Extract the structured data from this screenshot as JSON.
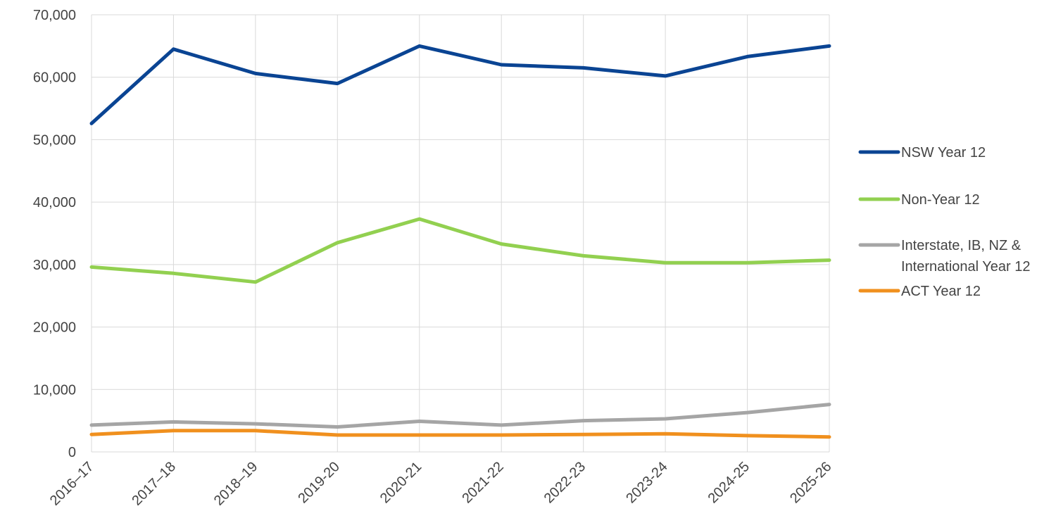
{
  "chart_data": {
    "type": "line",
    "title": "",
    "xlabel": "",
    "ylabel": "",
    "categories": [
      "2016–17",
      "2017–18",
      "2018–19",
      "2019-20",
      "2020-21",
      "2021-22",
      "2022-23",
      "2023-24",
      "2024-25",
      "2025-26"
    ],
    "ylim": [
      0,
      70000
    ],
    "yticks": [
      0,
      10000,
      20000,
      30000,
      40000,
      50000,
      60000,
      70000
    ],
    "ytick_labels": [
      "0",
      "10,000",
      "20,000",
      "30,000",
      "40,000",
      "50,000",
      "60,000",
      "70,000"
    ],
    "grid": true,
    "legend_position": "right",
    "series": [
      {
        "name": "NSW Year 12",
        "color": "#0a4493",
        "values": [
          52600,
          64500,
          60600,
          59000,
          65000,
          62000,
          61500,
          60200,
          63300,
          65000
        ]
      },
      {
        "name": "Non-Year 12",
        "color": "#92d050",
        "values": [
          29600,
          28600,
          27200,
          33500,
          37300,
          33300,
          31400,
          30300,
          30300,
          30700
        ]
      },
      {
        "name": "Interstate, IB, NZ & International Year 12",
        "legend_lines": [
          "Interstate, IB, NZ &",
          "International Year 12"
        ],
        "color": "#a5a5a5",
        "values": [
          4300,
          4800,
          4500,
          4000,
          4900,
          4300,
          5000,
          5300,
          6300,
          7600
        ]
      },
      {
        "name": "ACT Year 12",
        "color": "#f0901e",
        "values": [
          2800,
          3400,
          3400,
          2700,
          2700,
          2700,
          2800,
          2900,
          2600,
          2400
        ]
      }
    ]
  }
}
